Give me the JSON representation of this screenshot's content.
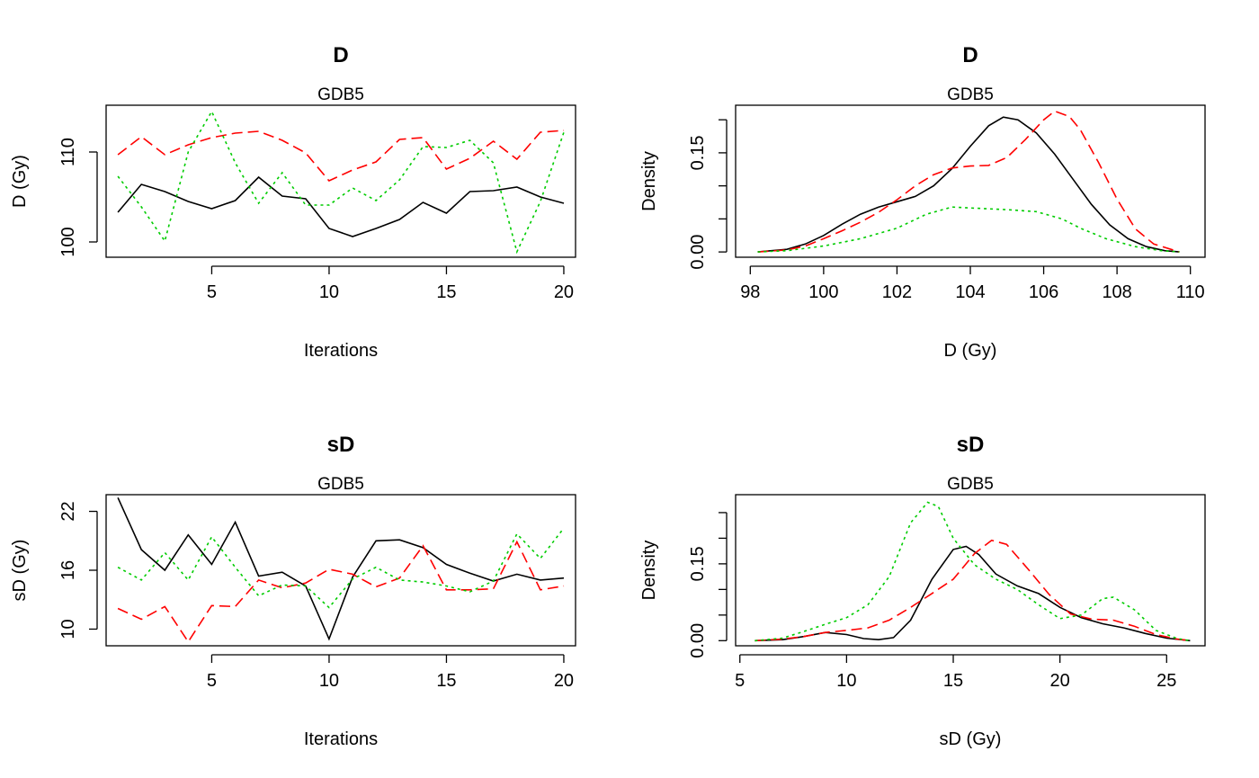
{
  "colors": {
    "chain1": "#000000",
    "chain2": "#ff0000",
    "chain3": "#00cc00"
  },
  "chart_data": [
    {
      "type": "line",
      "title": "D",
      "subtitle": "GDB5",
      "xlabel": "Iterations",
      "ylabel": "D (Gy)",
      "xlim": [
        0.5,
        20.5
      ],
      "ylim": [
        98.3,
        115.2
      ],
      "xticks": [
        5,
        10,
        15,
        20
      ],
      "yticks": [
        100,
        110
      ],
      "x": [
        1,
        2,
        3,
        4,
        5,
        6,
        7,
        8,
        9,
        10,
        11,
        12,
        13,
        14,
        15,
        16,
        17,
        18,
        19,
        20
      ],
      "series": [
        {
          "style": "solid",
          "color": "#000000",
          "values": [
            103.3,
            106.4,
            105.6,
            104.5,
            103.7,
            104.6,
            107.2,
            105.1,
            104.8,
            101.5,
            100.6,
            101.5,
            102.5,
            104.4,
            103.2,
            105.6,
            105.7,
            106.1,
            105.0,
            104.3
          ]
        },
        {
          "style": "dashed",
          "color": "#ff0000",
          "values": [
            109.7,
            111.7,
            109.7,
            110.8,
            111.6,
            112.1,
            112.3,
            111.3,
            109.9,
            106.8,
            108.0,
            108.9,
            111.4,
            111.6,
            108.1,
            109.3,
            111.2,
            109.2,
            112.2,
            112.4
          ]
        },
        {
          "style": "dotted",
          "color": "#00cc00",
          "values": [
            107.3,
            103.9,
            100.1,
            110.0,
            114.5,
            108.8,
            104.3,
            107.7,
            104.1,
            104.1,
            106.0,
            104.6,
            106.9,
            110.6,
            110.5,
            111.3,
            108.8,
            98.9,
            104.5,
            112.2
          ]
        }
      ]
    },
    {
      "type": "line",
      "title": "D",
      "subtitle": "GDB5",
      "xlabel": "D (Gy)",
      "ylabel": "Density",
      "xlim": [
        97.6,
        110.4
      ],
      "ylim": [
        -0.008,
        0.222
      ],
      "xticks": [
        98,
        100,
        102,
        104,
        106,
        108,
        110
      ],
      "yticks": [
        0.0,
        0.05,
        0.1,
        0.15,
        0.2
      ],
      "ytick_labels": [
        "0.00",
        "",
        "",
        "0.15",
        ""
      ],
      "series": [
        {
          "style": "solid",
          "color": "#000000",
          "x": [
            98.2,
            99.0,
            99.5,
            100.0,
            100.5,
            101.0,
            101.5,
            102.0,
            102.5,
            103.0,
            103.5,
            104.0,
            104.5,
            104.9,
            105.3,
            105.8,
            106.3,
            106.8,
            107.3,
            107.8,
            108.3,
            108.8,
            109.3,
            109.7
          ],
          "y": [
            0.0,
            0.004,
            0.012,
            0.025,
            0.042,
            0.057,
            0.068,
            0.076,
            0.084,
            0.1,
            0.126,
            0.16,
            0.191,
            0.204,
            0.2,
            0.18,
            0.148,
            0.11,
            0.072,
            0.041,
            0.02,
            0.008,
            0.002,
            0.0
          ]
        },
        {
          "style": "dashed",
          "color": "#ff0000",
          "x": [
            98.2,
            99.0,
            99.5,
            100.0,
            100.5,
            101.0,
            101.5,
            102.0,
            102.5,
            103.0,
            103.5,
            104.0,
            104.5,
            105.0,
            105.5,
            106.0,
            106.3,
            106.7,
            107.0,
            107.5,
            108.0,
            108.5,
            109.0,
            109.7
          ],
          "y": [
            0.0,
            0.003,
            0.009,
            0.02,
            0.032,
            0.045,
            0.06,
            0.079,
            0.1,
            0.117,
            0.127,
            0.13,
            0.131,
            0.143,
            0.17,
            0.2,
            0.213,
            0.205,
            0.185,
            0.135,
            0.08,
            0.035,
            0.012,
            0.0
          ]
        },
        {
          "style": "dotted",
          "color": "#00cc00",
          "x": [
            98.2,
            99.0,
            100.0,
            101.0,
            102.0,
            102.8,
            103.5,
            104.2,
            105.0,
            105.8,
            106.5,
            107.0,
            107.7,
            108.5,
            109.2,
            109.7
          ],
          "y": [
            0.0,
            0.002,
            0.009,
            0.02,
            0.036,
            0.057,
            0.068,
            0.066,
            0.064,
            0.061,
            0.05,
            0.036,
            0.02,
            0.008,
            0.002,
            0.0
          ]
        }
      ]
    },
    {
      "type": "line",
      "title": "sD",
      "subtitle": "GDB5",
      "xlabel": "Iterations",
      "ylabel": "sD (Gy)",
      "xlim": [
        0.5,
        20.5
      ],
      "ylim": [
        8.3,
        23.7
      ],
      "xticks": [
        5,
        10,
        15,
        20
      ],
      "yticks": [
        10,
        16,
        22
      ],
      "x": [
        1,
        2,
        3,
        4,
        5,
        6,
        7,
        8,
        9,
        10,
        11,
        12,
        13,
        14,
        15,
        16,
        17,
        18,
        19,
        20
      ],
      "series": [
        {
          "style": "solid",
          "color": "#000000",
          "values": [
            23.4,
            18.1,
            16.0,
            19.6,
            16.6,
            20.9,
            15.4,
            15.8,
            14.4,
            9.0,
            15.3,
            19.0,
            19.1,
            18.3,
            16.6,
            15.7,
            14.9,
            15.6,
            15.0,
            15.2
          ]
        },
        {
          "style": "dashed",
          "color": "#ff0000",
          "values": [
            12.1,
            11.0,
            12.3,
            8.7,
            12.4,
            12.3,
            15.0,
            14.2,
            14.7,
            16.1,
            15.6,
            14.3,
            15.2,
            18.5,
            14.0,
            14.0,
            14.1,
            18.9,
            14.0,
            14.4
          ]
        },
        {
          "style": "dotted",
          "color": "#00cc00",
          "values": [
            16.3,
            15.0,
            17.8,
            15.0,
            19.4,
            16.3,
            13.4,
            14.5,
            14.4,
            12.2,
            15.1,
            16.3,
            15.0,
            14.8,
            14.4,
            13.8,
            14.9,
            19.7,
            17.2,
            20.3
          ]
        }
      ]
    },
    {
      "type": "line",
      "title": "sD",
      "subtitle": "GDB5",
      "xlabel": "sD (Gy)",
      "ylabel": "Density",
      "xlim": [
        4.8,
        26.8
      ],
      "ylim": [
        -0.01,
        0.285
      ],
      "xticks": [
        5,
        10,
        15,
        20,
        25
      ],
      "yticks": [
        0.0,
        0.05,
        0.1,
        0.15,
        0.2,
        0.25
      ],
      "ytick_labels": [
        "0.00",
        "",
        "",
        "0.15",
        "",
        ""
      ],
      "series": [
        {
          "style": "solid",
          "color": "#000000",
          "x": [
            5.7,
            7.0,
            8.0,
            9.0,
            10.0,
            10.8,
            11.5,
            12.2,
            13.0,
            14.0,
            15.0,
            15.6,
            16.2,
            17.0,
            18.0,
            19.0,
            20.0,
            21.0,
            22.0,
            23.0,
            24.0,
            25.0,
            26.1
          ],
          "y": [
            0.0,
            0.002,
            0.008,
            0.016,
            0.012,
            0.004,
            0.002,
            0.006,
            0.04,
            0.12,
            0.178,
            0.184,
            0.168,
            0.13,
            0.107,
            0.092,
            0.065,
            0.045,
            0.033,
            0.025,
            0.014,
            0.005,
            0.0
          ]
        },
        {
          "style": "dashed",
          "color": "#ff0000",
          "x": [
            5.7,
            7.0,
            8.0,
            9.0,
            10.0,
            11.0,
            12.0,
            13.0,
            14.0,
            15.0,
            16.0,
            16.8,
            17.5,
            18.5,
            19.5,
            20.5,
            21.5,
            22.5,
            23.5,
            24.5,
            25.5,
            26.1
          ],
          "y": [
            0.0,
            0.003,
            0.008,
            0.016,
            0.02,
            0.025,
            0.04,
            0.065,
            0.092,
            0.12,
            0.17,
            0.196,
            0.188,
            0.14,
            0.09,
            0.052,
            0.042,
            0.04,
            0.028,
            0.012,
            0.003,
            0.0
          ]
        },
        {
          "style": "dotted",
          "color": "#00cc00",
          "x": [
            5.7,
            7.0,
            8.0,
            9.0,
            10.0,
            11.0,
            12.0,
            13.0,
            13.8,
            14.3,
            15.0,
            16.0,
            17.0,
            18.0,
            19.0,
            20.0,
            21.0,
            22.0,
            22.5,
            23.5,
            24.5,
            25.5,
            26.1
          ],
          "y": [
            0.0,
            0.005,
            0.018,
            0.032,
            0.045,
            0.07,
            0.125,
            0.23,
            0.27,
            0.262,
            0.2,
            0.148,
            0.12,
            0.1,
            0.07,
            0.043,
            0.05,
            0.082,
            0.085,
            0.06,
            0.02,
            0.004,
            0.0
          ]
        }
      ]
    }
  ]
}
